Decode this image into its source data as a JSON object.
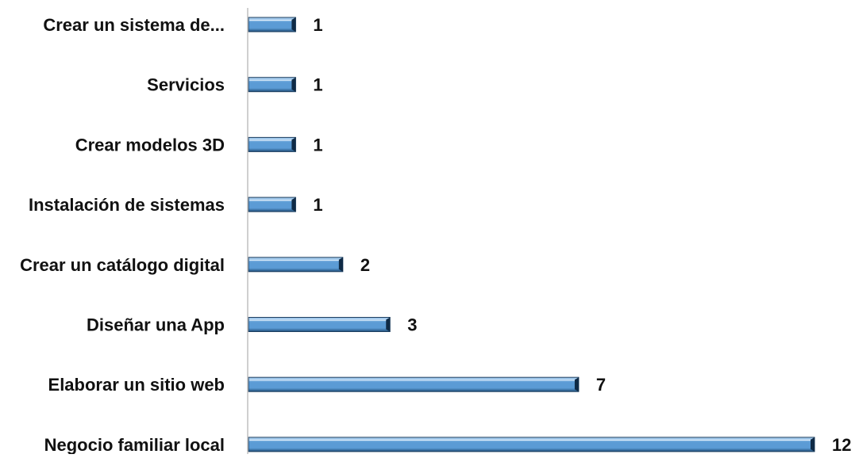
{
  "chart_data": {
    "type": "bar",
    "orientation": "horizontal",
    "categories": [
      "Crear un sistema de...",
      "Servicios",
      "Crear modelos 3D",
      "Instalación de sistemas",
      "Crear un catálogo digital",
      "Diseñar una App",
      "Elaborar un sitio web",
      "Negocio familiar local"
    ],
    "values": [
      1,
      1,
      1,
      1,
      2,
      3,
      7,
      12
    ],
    "data_labels": [
      "1",
      "1",
      "1",
      "1",
      "2",
      "3",
      "7",
      "12"
    ],
    "title": "",
    "xlabel": "",
    "ylabel": "",
    "xlim": [
      0,
      12
    ],
    "grid": false,
    "legend": "none",
    "colors": {
      "bar_top": "#b8d8f4",
      "bar_mid": "#5b9bd5",
      "bar_bottom": "#1f4e79",
      "bar_edge": "#1a3c5e",
      "bar_end_cap": "#0f2a45",
      "axis": "#bfbfbf",
      "text": "#111111"
    }
  }
}
